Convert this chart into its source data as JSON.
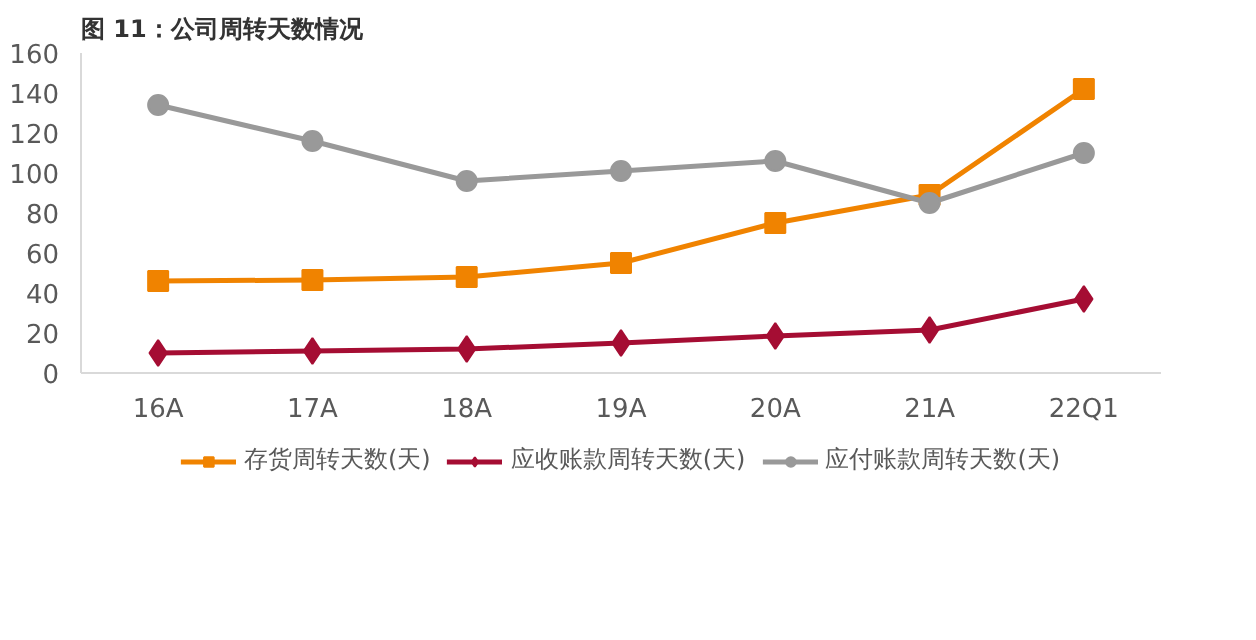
{
  "chart_data": {
    "type": "line",
    "title": "图 11：公司周转天数情况",
    "categories": [
      "16A",
      "17A",
      "18A",
      "19A",
      "20A",
      "21A",
      "22Q1"
    ],
    "series": [
      {
        "name": "存货周转天数(天)",
        "color": "#f08300",
        "marker": "square",
        "values": [
          46,
          46.5,
          48,
          55,
          75,
          89,
          142
        ]
      },
      {
        "name": "应收账款周转天数(天)",
        "color": "#a50d33",
        "marker": "diamond",
        "values": [
          10,
          11,
          12,
          15,
          18.5,
          21.5,
          37
        ]
      },
      {
        "name": "应付账款周转天数(天)",
        "color": "#999999",
        "marker": "circle",
        "values": [
          134,
          116,
          96,
          101,
          106,
          85,
          110
        ]
      }
    ],
    "ylim": [
      0,
      160
    ],
    "yticks": [
      0,
      20,
      40,
      60,
      80,
      100,
      120,
      140,
      160
    ],
    "legend": "bottom",
    "grid": false
  }
}
